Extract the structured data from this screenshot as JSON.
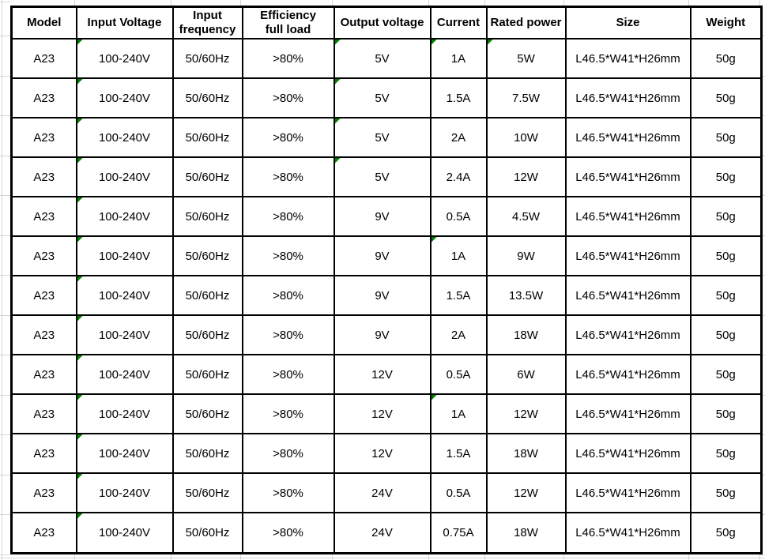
{
  "table": {
    "columns": [
      {
        "key": "model",
        "label": "Model"
      },
      {
        "key": "input_voltage",
        "label": "Input Voltage"
      },
      {
        "key": "input_frequency",
        "label": "Input\nfrequency"
      },
      {
        "key": "efficiency",
        "label": "Efficiency\nfull load"
      },
      {
        "key": "output_voltage",
        "label": "Output voltage"
      },
      {
        "key": "current",
        "label": "Current"
      },
      {
        "key": "rated_power",
        "label": "Rated power"
      },
      {
        "key": "size",
        "label": "Size"
      },
      {
        "key": "weight",
        "label": "Weight"
      }
    ],
    "rows": [
      {
        "model": "A23",
        "input_voltage": "100-240V",
        "input_frequency": "50/60Hz",
        "efficiency": ">80%",
        "output_voltage": "5V",
        "current": "1A",
        "rated_power": "5W",
        "size": "L46.5*W41*H26mm",
        "weight": "50g",
        "indicators": [
          "input_voltage",
          "output_voltage",
          "current",
          "rated_power"
        ]
      },
      {
        "model": "A23",
        "input_voltage": "100-240V",
        "input_frequency": "50/60Hz",
        "efficiency": ">80%",
        "output_voltage": "5V",
        "current": "1.5A",
        "rated_power": "7.5W",
        "size": "L46.5*W41*H26mm",
        "weight": "50g",
        "indicators": [
          "input_voltage",
          "output_voltage"
        ]
      },
      {
        "model": "A23",
        "input_voltage": "100-240V",
        "input_frequency": "50/60Hz",
        "efficiency": ">80%",
        "output_voltage": "5V",
        "current": "2A",
        "rated_power": "10W",
        "size": "L46.5*W41*H26mm",
        "weight": "50g",
        "indicators": [
          "input_voltage",
          "output_voltage"
        ]
      },
      {
        "model": "A23",
        "input_voltage": "100-240V",
        "input_frequency": "50/60Hz",
        "efficiency": ">80%",
        "output_voltage": "5V",
        "current": "2.4A",
        "rated_power": "12W",
        "size": "L46.5*W41*H26mm",
        "weight": "50g",
        "indicators": [
          "input_voltage",
          "output_voltage"
        ]
      },
      {
        "model": "A23",
        "input_voltage": "100-240V",
        "input_frequency": "50/60Hz",
        "efficiency": ">80%",
        "output_voltage": "9V",
        "current": "0.5A",
        "rated_power": "4.5W",
        "size": "L46.5*W41*H26mm",
        "weight": "50g",
        "indicators": [
          "input_voltage"
        ]
      },
      {
        "model": "A23",
        "input_voltage": "100-240V",
        "input_frequency": "50/60Hz",
        "efficiency": ">80%",
        "output_voltage": "9V",
        "current": "1A",
        "rated_power": "9W",
        "size": "L46.5*W41*H26mm",
        "weight": "50g",
        "indicators": [
          "input_voltage",
          "current"
        ]
      },
      {
        "model": "A23",
        "input_voltage": "100-240V",
        "input_frequency": "50/60Hz",
        "efficiency": ">80%",
        "output_voltage": "9V",
        "current": "1.5A",
        "rated_power": "13.5W",
        "size": "L46.5*W41*H26mm",
        "weight": "50g",
        "indicators": [
          "input_voltage"
        ]
      },
      {
        "model": "A23",
        "input_voltage": "100-240V",
        "input_frequency": "50/60Hz",
        "efficiency": ">80%",
        "output_voltage": "9V",
        "current": "2A",
        "rated_power": "18W",
        "size": "L46.5*W41*H26mm",
        "weight": "50g",
        "indicators": [
          "input_voltage"
        ]
      },
      {
        "model": "A23",
        "input_voltage": "100-240V",
        "input_frequency": "50/60Hz",
        "efficiency": ">80%",
        "output_voltage": "12V",
        "current": "0.5A",
        "rated_power": "6W",
        "size": "L46.5*W41*H26mm",
        "weight": "50g",
        "indicators": [
          "input_voltage"
        ]
      },
      {
        "model": "A23",
        "input_voltage": "100-240V",
        "input_frequency": "50/60Hz",
        "efficiency": ">80%",
        "output_voltage": "12V",
        "current": "1A",
        "rated_power": "12W",
        "size": "L46.5*W41*H26mm",
        "weight": "50g",
        "indicators": [
          "input_voltage",
          "current"
        ]
      },
      {
        "model": "A23",
        "input_voltage": "100-240V",
        "input_frequency": "50/60Hz",
        "efficiency": ">80%",
        "output_voltage": "12V",
        "current": "1.5A",
        "rated_power": "18W",
        "size": "L46.5*W41*H26mm",
        "weight": "50g",
        "indicators": [
          "input_voltage"
        ]
      },
      {
        "model": "A23",
        "input_voltage": "100-240V",
        "input_frequency": "50/60Hz",
        "efficiency": ">80%",
        "output_voltage": "24V",
        "current": "0.5A",
        "rated_power": "12W",
        "size": "L46.5*W41*H26mm",
        "weight": "50g",
        "indicators": [
          "input_voltage"
        ]
      },
      {
        "model": "A23",
        "input_voltage": "100-240V",
        "input_frequency": "50/60Hz",
        "efficiency": ">80%",
        "output_voltage": "24V",
        "current": "0.75A",
        "rated_power": "18W",
        "size": "L46.5*W41*H26mm",
        "weight": "50g",
        "indicators": [
          "input_voltage"
        ]
      }
    ]
  },
  "colors": {
    "error_indicator": "#008000",
    "cell_border": "#000000",
    "sheet_gridline": "#d6d6d6",
    "text": "#000000",
    "background": "#ffffff"
  }
}
